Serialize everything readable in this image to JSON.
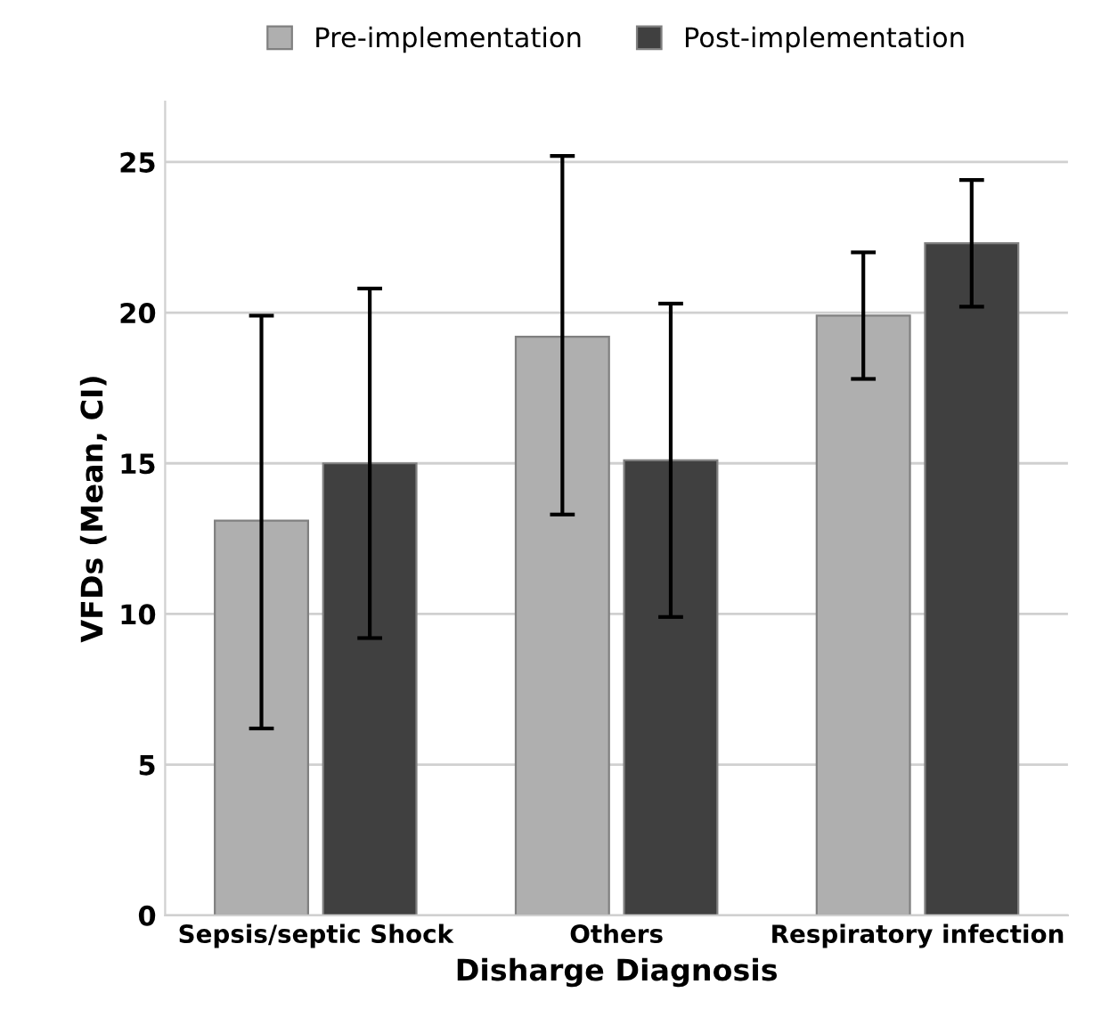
{
  "chart_data": {
    "type": "bar",
    "xlabel": "Disharge Diagnosis",
    "ylabel": "VFDs (Mean, CI)",
    "categories": [
      "Sepsis/septic Shock",
      "Others",
      "Respiratory infection"
    ],
    "series": [
      {
        "name": "Pre-implementation",
        "color": "#afafaf",
        "values": [
          13.1,
          19.2,
          19.9
        ],
        "errors": [
          [
            6.2,
            19.9
          ],
          [
            13.3,
            25.2
          ],
          [
            17.8,
            22.0
          ]
        ]
      },
      {
        "name": "Post-implementation",
        "color": "#404040",
        "values": [
          15.0,
          15.1,
          22.3
        ],
        "errors": [
          [
            9.2,
            20.8
          ],
          [
            9.9,
            20.3
          ],
          [
            20.2,
            24.4
          ]
        ]
      }
    ],
    "ylim": [
      0,
      27
    ],
    "yticks": [
      0,
      5,
      10,
      15,
      20,
      25
    ],
    "grid": "y",
    "legend": "top"
  }
}
